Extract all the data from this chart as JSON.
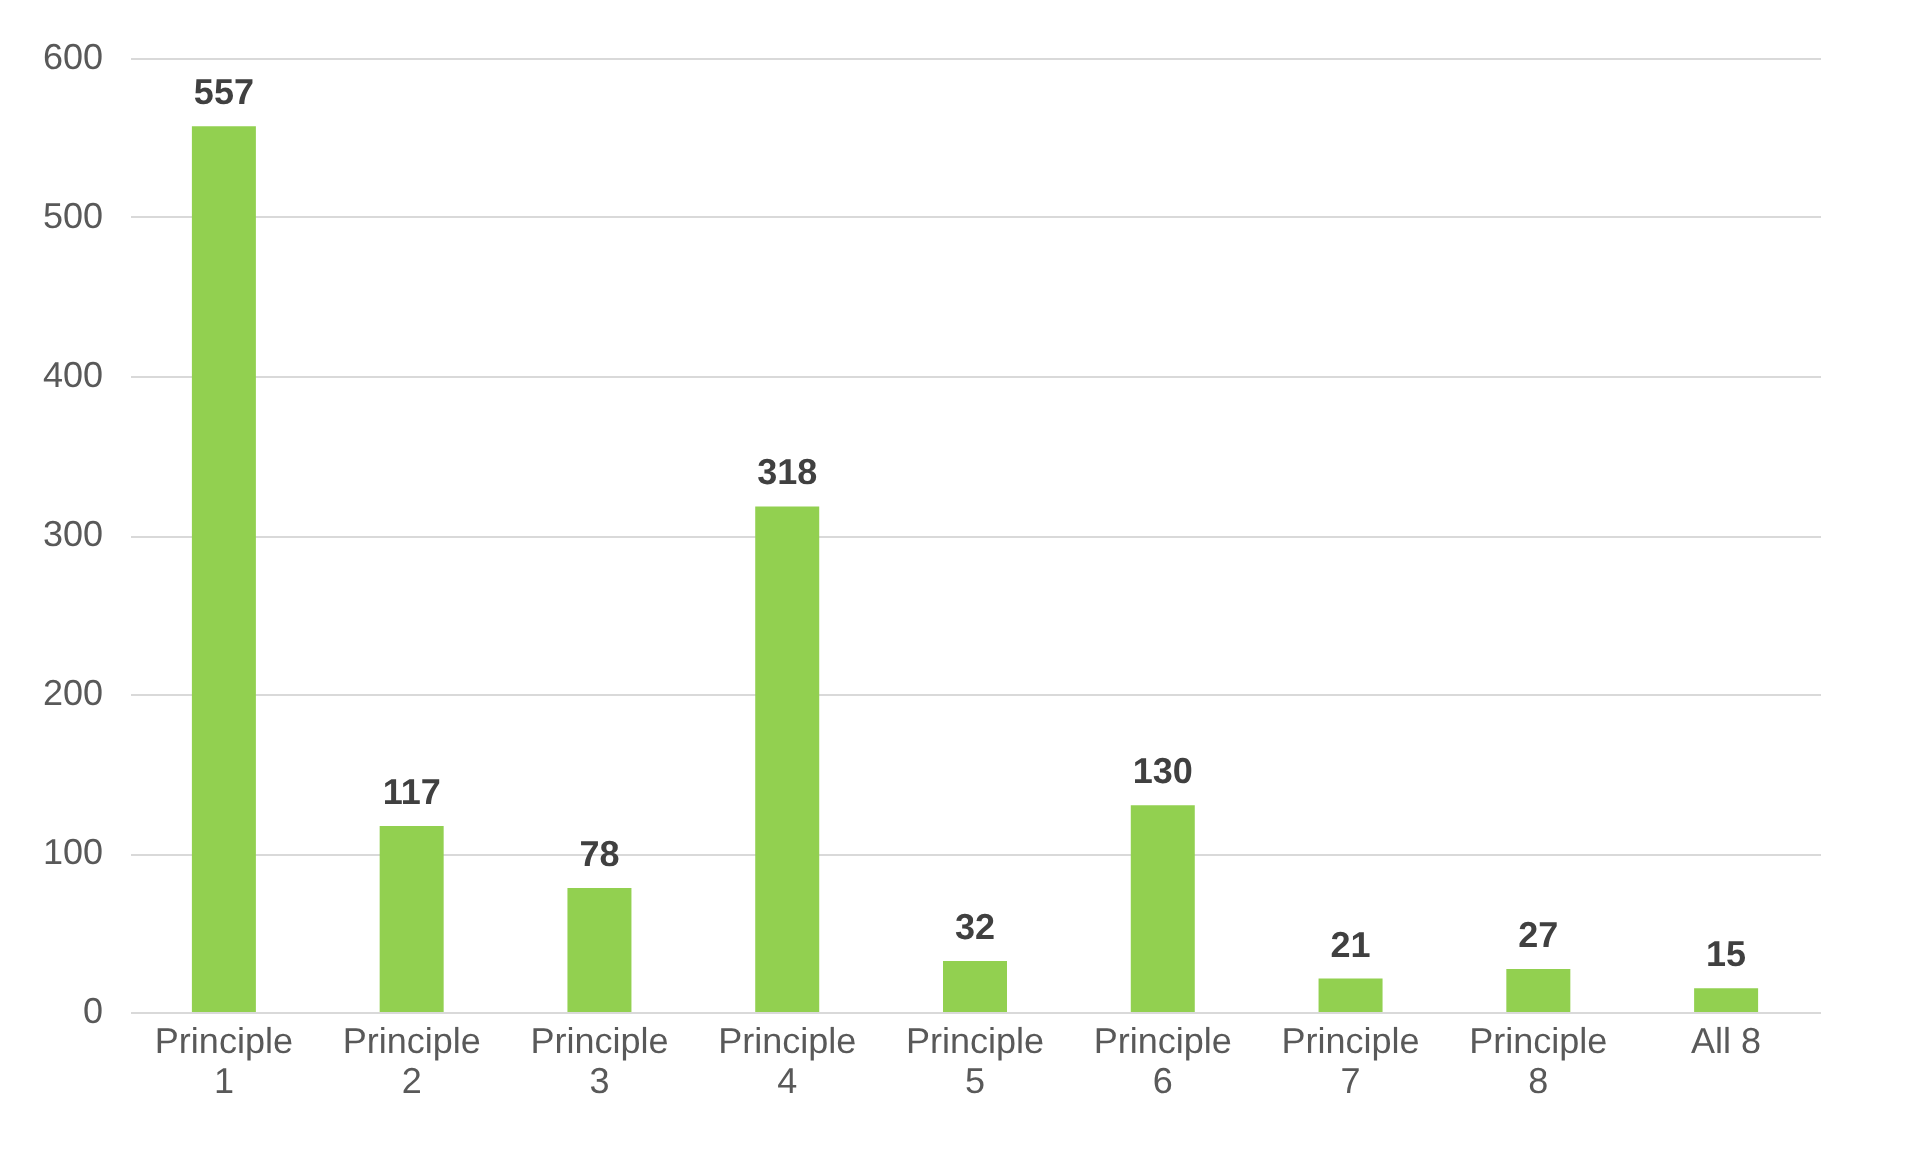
{
  "chart_data": {
    "type": "bar",
    "categories": [
      "Principle 1",
      "Principle 2",
      "Principle 3",
      "Principle 4",
      "Principle 5",
      "Principle 6",
      "Principle 7",
      "Principle 8",
      "All 8"
    ],
    "values": [
      557,
      117,
      78,
      318,
      32,
      130,
      21,
      27,
      15
    ],
    "color": "#92d050",
    "ylim": [
      0,
      600
    ],
    "yticks": [
      0,
      100,
      200,
      300,
      400,
      500,
      600
    ],
    "grid": "y",
    "data_labels": true
  }
}
